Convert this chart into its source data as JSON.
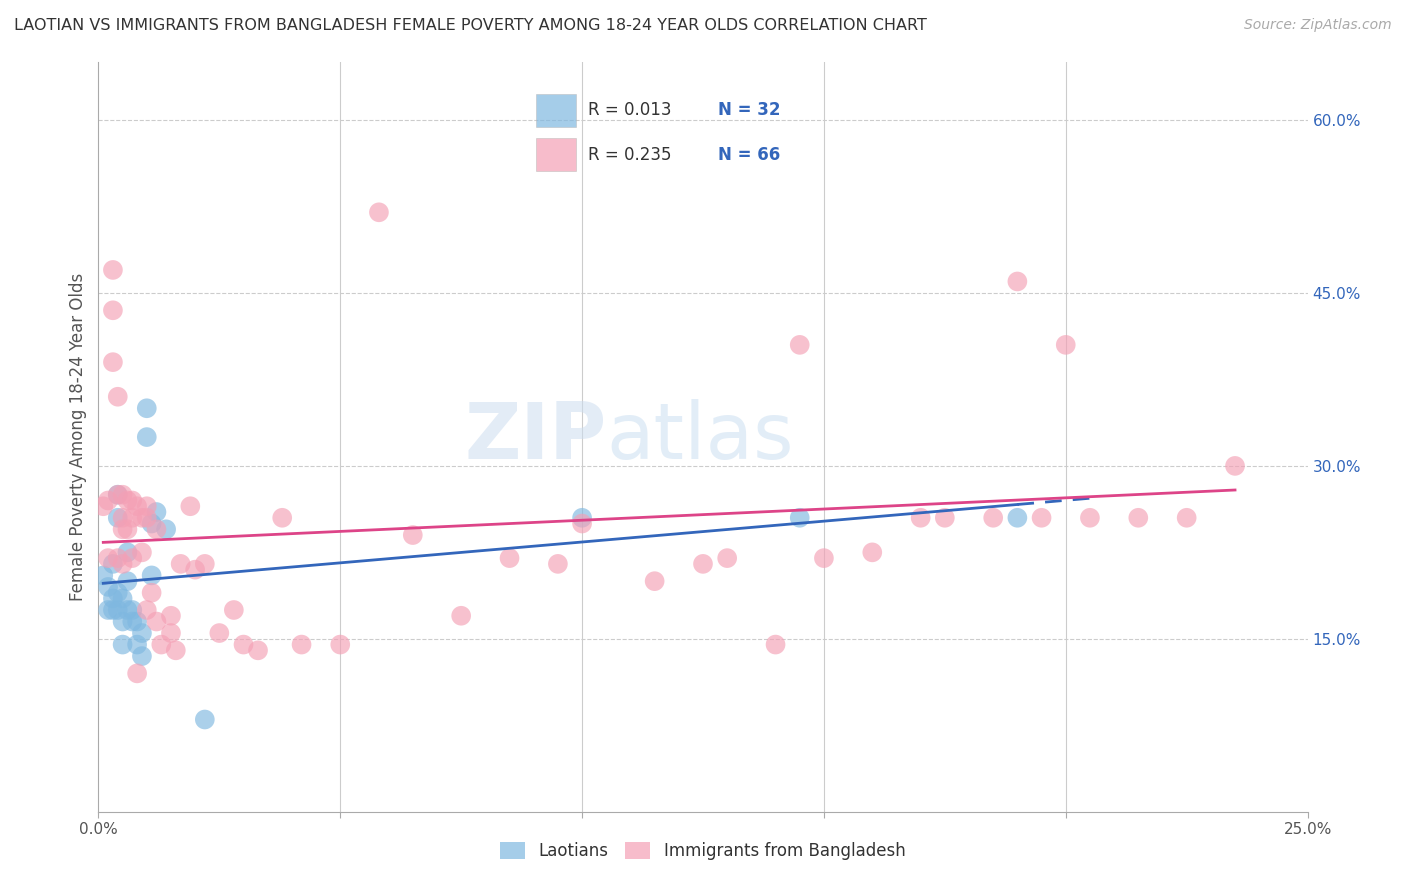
{
  "title": "LAOTIAN VS IMMIGRANTS FROM BANGLADESH FEMALE POVERTY AMONG 18-24 YEAR OLDS CORRELATION CHART",
  "source": "Source: ZipAtlas.com",
  "ylabel": "Female Poverty Among 18-24 Year Olds",
  "xlim": [
    0.0,
    0.25
  ],
  "ylim": [
    0.0,
    0.65
  ],
  "y_ticks_right": [
    0.15,
    0.3,
    0.45,
    0.6
  ],
  "y_tick_labels_right": [
    "15.0%",
    "30.0%",
    "45.0%",
    "60.0%"
  ],
  "grid_color": "#cccccc",
  "background_color": "#ffffff",
  "blue_color": "#7fb8e0",
  "pink_color": "#f4a0b5",
  "blue_line_color": "#3366bb",
  "pink_line_color": "#dd4488",
  "legend_text_color": "#3366bb",
  "laotian_x": [
    0.001,
    0.002,
    0.002,
    0.003,
    0.003,
    0.003,
    0.004,
    0.004,
    0.004,
    0.004,
    0.005,
    0.005,
    0.005,
    0.006,
    0.006,
    0.006,
    0.007,
    0.007,
    0.008,
    0.008,
    0.009,
    0.009,
    0.01,
    0.01,
    0.011,
    0.011,
    0.012,
    0.014,
    0.022,
    0.1,
    0.145,
    0.19
  ],
  "laotian_y": [
    0.205,
    0.195,
    0.175,
    0.215,
    0.185,
    0.175,
    0.275,
    0.255,
    0.19,
    0.175,
    0.185,
    0.165,
    0.145,
    0.225,
    0.2,
    0.175,
    0.175,
    0.165,
    0.165,
    0.145,
    0.155,
    0.135,
    0.35,
    0.325,
    0.205,
    0.25,
    0.26,
    0.245,
    0.08,
    0.255,
    0.255,
    0.255
  ],
  "bangladesh_x": [
    0.001,
    0.002,
    0.002,
    0.003,
    0.003,
    0.003,
    0.004,
    0.004,
    0.004,
    0.005,
    0.005,
    0.005,
    0.005,
    0.006,
    0.006,
    0.007,
    0.007,
    0.007,
    0.008,
    0.008,
    0.009,
    0.009,
    0.01,
    0.01,
    0.01,
    0.011,
    0.012,
    0.012,
    0.013,
    0.015,
    0.015,
    0.016,
    0.017,
    0.019,
    0.02,
    0.022,
    0.025,
    0.028,
    0.03,
    0.033,
    0.038,
    0.042,
    0.05,
    0.058,
    0.065,
    0.075,
    0.085,
    0.095,
    0.1,
    0.115,
    0.125,
    0.13,
    0.14,
    0.145,
    0.15,
    0.16,
    0.17,
    0.175,
    0.185,
    0.19,
    0.195,
    0.2,
    0.205,
    0.215,
    0.225,
    0.235
  ],
  "bangladesh_y": [
    0.265,
    0.27,
    0.22,
    0.47,
    0.435,
    0.39,
    0.36,
    0.275,
    0.22,
    0.275,
    0.255,
    0.245,
    0.215,
    0.27,
    0.245,
    0.27,
    0.255,
    0.22,
    0.265,
    0.12,
    0.255,
    0.225,
    0.265,
    0.255,
    0.175,
    0.19,
    0.245,
    0.165,
    0.145,
    0.17,
    0.155,
    0.14,
    0.215,
    0.265,
    0.21,
    0.215,
    0.155,
    0.175,
    0.145,
    0.14,
    0.255,
    0.145,
    0.145,
    0.52,
    0.24,
    0.17,
    0.22,
    0.215,
    0.25,
    0.2,
    0.215,
    0.22,
    0.145,
    0.405,
    0.22,
    0.225,
    0.255,
    0.255,
    0.255,
    0.46,
    0.255,
    0.405,
    0.255,
    0.255,
    0.255,
    0.3
  ]
}
